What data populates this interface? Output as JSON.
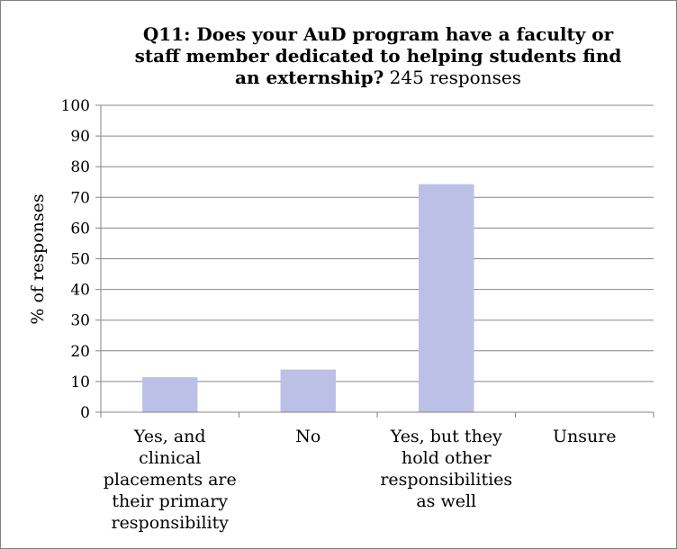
{
  "chart_data": {
    "type": "bar",
    "title": "Q11: Does your AuD program have a faculty or staff member dedicated to helping students find an externship?",
    "subtitle": "245 responses",
    "ylabel": "% of responses",
    "xlabel": "",
    "ylim": [
      0,
      100
    ],
    "yticks": [
      0,
      10,
      20,
      30,
      40,
      50,
      60,
      70,
      80,
      90,
      100
    ],
    "grid": true,
    "categories": [
      "Yes, and clinical placements are their primary responsibility",
      "No",
      "Yes, but they hold other responsibilities as well",
      "Unsure"
    ],
    "category_lines": [
      [
        "Yes, and",
        "clinical",
        "placements are",
        "their primary",
        "responsibility"
      ],
      [
        "No"
      ],
      [
        "Yes, but they",
        "hold other",
        "responsibilities",
        "as well"
      ],
      [
        "Unsure"
      ]
    ],
    "values": [
      11.4,
      13.9,
      74.3,
      0
    ],
    "bar_color": "#bcc0e6",
    "grid_color": "#868686"
  }
}
